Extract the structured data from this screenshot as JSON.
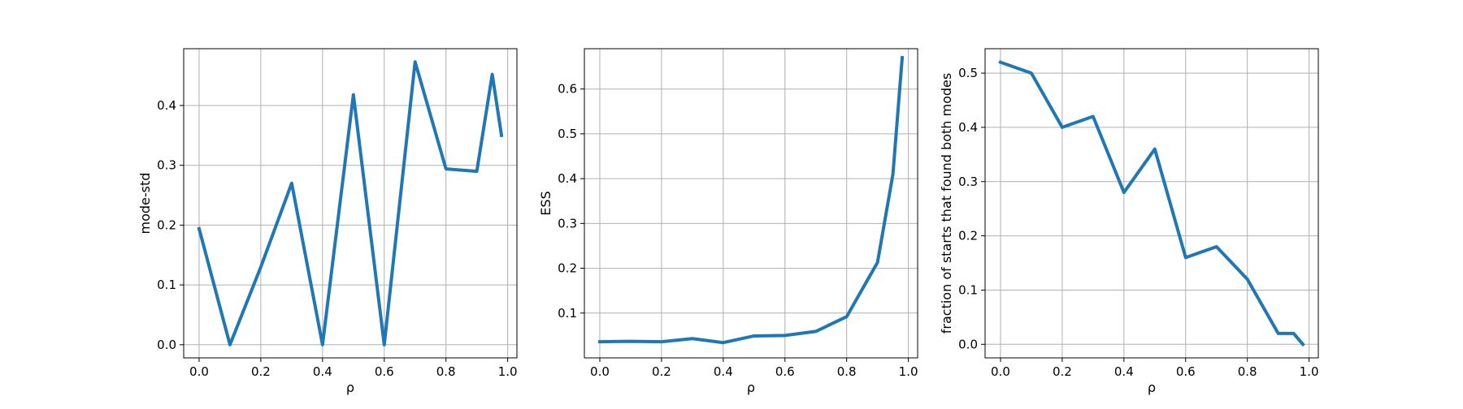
{
  "chart_data": [
    {
      "type": "line",
      "xlabel": "ρ",
      "ylabel": "mode-std",
      "xlim": [
        -0.05,
        1.03
      ],
      "ylim": [
        -0.022,
        0.495
      ],
      "xticks": [
        0.0,
        0.2,
        0.4,
        0.6,
        0.8,
        1.0
      ],
      "yticks": [
        0.0,
        0.1,
        0.2,
        0.3,
        0.4
      ],
      "grid": true,
      "color": "#1f77b4",
      "series": [
        {
          "x": [
            0.0,
            0.1,
            0.2,
            0.3,
            0.4,
            0.5,
            0.6,
            0.7,
            0.8,
            0.9,
            0.95,
            0.98
          ],
          "y": [
            0.194,
            0.0,
            0.13,
            0.27,
            0.0,
            0.418,
            0.0,
            0.473,
            0.294,
            0.29,
            0.452,
            0.35
          ]
        }
      ]
    },
    {
      "type": "line",
      "xlabel": "ρ",
      "ylabel": "ESS",
      "xlim": [
        -0.05,
        1.03
      ],
      "ylim": [
        0.0,
        0.69
      ],
      "xticks": [
        0.0,
        0.2,
        0.4,
        0.6,
        0.8,
        1.0
      ],
      "yticks": [
        0.1,
        0.2,
        0.3,
        0.4,
        0.5,
        0.6
      ],
      "grid": true,
      "color": "#1f77b4",
      "series": [
        {
          "x": [
            0.0,
            0.1,
            0.2,
            0.3,
            0.4,
            0.5,
            0.6,
            0.7,
            0.8,
            0.9,
            0.95,
            0.98
          ],
          "y": [
            0.036,
            0.037,
            0.036,
            0.043,
            0.034,
            0.049,
            0.05,
            0.059,
            0.092,
            0.213,
            0.41,
            0.67
          ]
        }
      ]
    },
    {
      "type": "line",
      "xlabel": "ρ",
      "ylabel": "fraction of starts that found both modes",
      "xlim": [
        -0.05,
        1.03
      ],
      "ylim": [
        -0.025,
        0.545
      ],
      "xticks": [
        0.0,
        0.2,
        0.4,
        0.6,
        0.8,
        1.0
      ],
      "yticks": [
        0.0,
        0.1,
        0.2,
        0.3,
        0.4,
        0.5
      ],
      "grid": true,
      "color": "#1f77b4",
      "series": [
        {
          "x": [
            0.0,
            0.1,
            0.2,
            0.3,
            0.4,
            0.5,
            0.6,
            0.7,
            0.8,
            0.9,
            0.95,
            0.98
          ],
          "y": [
            0.52,
            0.5,
            0.4,
            0.42,
            0.28,
            0.36,
            0.16,
            0.18,
            0.12,
            0.02,
            0.02,
            0.0
          ]
        }
      ]
    }
  ]
}
